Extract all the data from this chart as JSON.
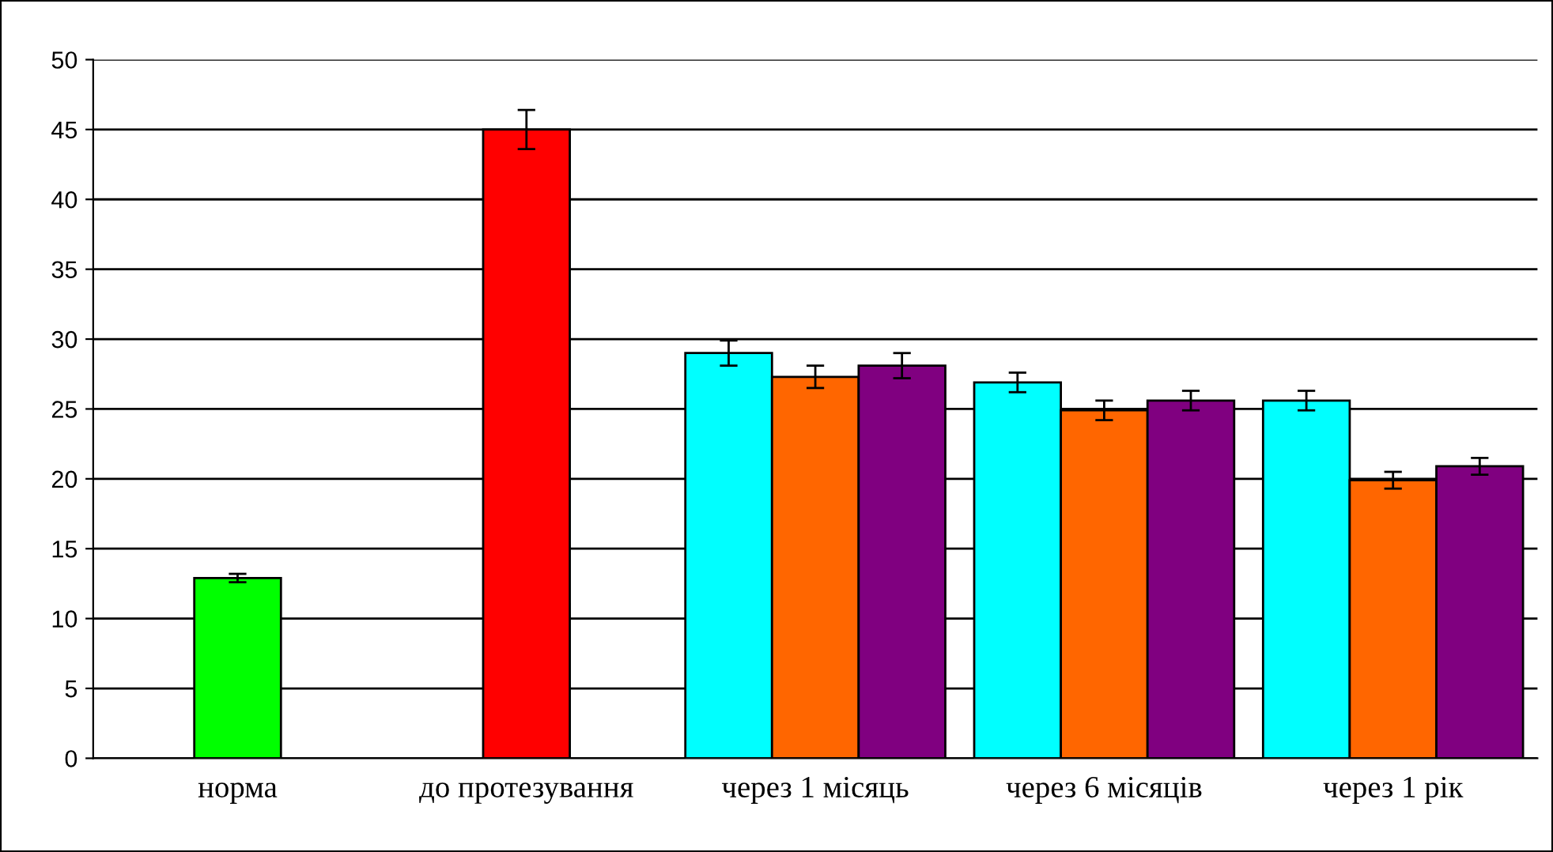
{
  "chart_data": {
    "type": "bar",
    "categories": [
      "норма",
      "до протезування",
      "через 1 місяць",
      "через 6 місяців",
      "через 1 рік"
    ],
    "series": [
      {
        "color": "#00ff00",
        "values": [
          12.9,
          null,
          null,
          null,
          null
        ],
        "errors": [
          0.3,
          null,
          null,
          null,
          null
        ]
      },
      {
        "color": "#ff0000",
        "values": [
          null,
          45,
          null,
          null,
          null
        ],
        "errors": [
          null,
          1.4,
          null,
          null,
          null
        ]
      },
      {
        "color": "#00ffff",
        "values": [
          null,
          null,
          29.0,
          26.9,
          25.6
        ],
        "errors": [
          null,
          null,
          0.9,
          0.7,
          0.7
        ]
      },
      {
        "color": "#ff6600",
        "values": [
          null,
          null,
          27.3,
          24.9,
          19.9
        ],
        "errors": [
          null,
          null,
          0.8,
          0.7,
          0.6
        ]
      },
      {
        "color": "#800080",
        "values": [
          null,
          null,
          28.1,
          25.6,
          20.9
        ],
        "errors": [
          null,
          null,
          0.9,
          0.7,
          0.6
        ]
      }
    ],
    "ylim": [
      0,
      50
    ],
    "yticks": [
      0,
      5,
      10,
      15,
      20,
      25,
      30,
      35,
      40,
      45,
      50
    ],
    "grid": "y",
    "legend": false
  }
}
